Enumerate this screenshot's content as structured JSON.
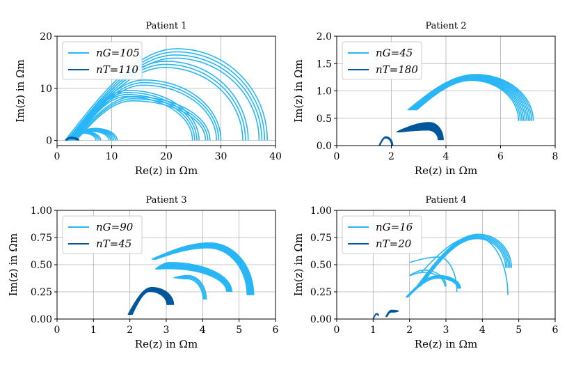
{
  "chart_data": [
    {
      "type": "line",
      "title": "Patient 1",
      "xlabel": "Re(z) in Ωm",
      "ylabel": "Im(z) in Ωm",
      "xlim": [
        0,
        40
      ],
      "ylim": [
        -1,
        20
      ],
      "xticks": [
        0,
        10,
        20,
        30,
        40
      ],
      "yticks": [
        0,
        10,
        20
      ],
      "ytick_labels": [
        "0",
        "10",
        "20"
      ],
      "grid": true,
      "legend_position": "top-left",
      "legend": [
        {
          "label": "nG=105",
          "color": "#29b6f6"
        },
        {
          "label": "nT=110",
          "color": "#01579b"
        }
      ],
      "series": [
        {
          "name": "nG=105",
          "color": "#29b6f6",
          "arcs": [
            {
              "x0": 1.5,
              "x1": 38.5,
              "h": 17.6,
              "xp": 22,
              "n": 4,
              "dx": 0.5,
              "dh": 0.6
            },
            {
              "x0": 2,
              "x1": 35,
              "h": 15.2,
              "xp": 20,
              "n": 3,
              "dx": 0.5,
              "dh": 0.6
            },
            {
              "x0": 2.5,
              "x1": 30,
              "h": 11.6,
              "xp": 16,
              "n": 3,
              "dx": 0.4,
              "dh": 0.5
            },
            {
              "x0": 2.5,
              "x1": 26,
              "h": 9.6,
              "xp": 13,
              "n": 4,
              "dx": 0.4,
              "dh": 0.4
            },
            {
              "x0": 3,
              "x1": 28,
              "h": 8.4,
              "xp": 14,
              "n": 3,
              "dx": 0.4,
              "dh": 0.4
            },
            {
              "x0": 1.5,
              "x1": 11,
              "h": 2.3,
              "xp": 7,
              "n": 6,
              "dx": 0.3,
              "dh": 0.12
            },
            {
              "x0": 2,
              "x1": 8,
              "h": 1.7,
              "xp": 5,
              "n": 4,
              "dx": 0.3,
              "dh": 0.1
            }
          ]
        },
        {
          "name": "nT=110",
          "color": "#01579b",
          "arcs": [
            {
              "x0": 1.5,
              "x1": 4,
              "h": 0.6,
              "xp": 2.5,
              "n": 5,
              "dx": 0.1,
              "dh": 0.05
            }
          ]
        }
      ]
    },
    {
      "type": "line",
      "title": "Patient 2",
      "xlabel": "Re(z) in Ωm",
      "ylabel": "Im(z) in Ωm",
      "xlim": [
        0,
        8
      ],
      "ylim": [
        0,
        2
      ],
      "xticks": [
        0,
        2,
        4,
        6,
        8
      ],
      "yticks": [
        0,
        0.5,
        1,
        1.5,
        2
      ],
      "ytick_labels": [
        "0.0",
        "0.5",
        "1.0",
        "1.5",
        "2.0"
      ],
      "grid": true,
      "legend_position": "top-left",
      "legend": [
        {
          "label": "nG=45",
          "color": "#29b6f6"
        },
        {
          "label": "nT=180",
          "color": "#01579b"
        }
      ],
      "series": [
        {
          "name": "nG=45",
          "color": "#29b6f6",
          "arcs": [
            {
              "x0": 2.6,
              "x1": 7.2,
              "h": 1.3,
              "xp": 5.1,
              "y0": 0.65,
              "y1": 0.45,
              "n": 10,
              "dx": 0.06,
              "dh": 0.012
            }
          ]
        },
        {
          "name": "nT=180",
          "color": "#01579b",
          "arcs": [
            {
              "x0": 1.55,
              "x1": 2.05,
              "h": 0.16,
              "xp": 1.8,
              "n": 3,
              "dx": 0.02,
              "dh": 0.01
            },
            {
              "x0": 2.2,
              "x1": 3.9,
              "h": 0.42,
              "xp": 3.4,
              "y0": 0.25,
              "y1": 0.1,
              "n": 10,
              "dx": 0.02,
              "dh": 0.015
            }
          ]
        }
      ]
    },
    {
      "type": "line",
      "title": "Patient 3",
      "xlabel": "Re(z) in Ωm",
      "ylabel": "Im(z) in Ωm",
      "xlim": [
        0,
        6
      ],
      "ylim": [
        0,
        1
      ],
      "xticks": [
        0,
        1,
        2,
        3,
        4,
        5,
        6
      ],
      "yticks": [
        0,
        0.25,
        0.5,
        0.75,
        1
      ],
      "ytick_labels": [
        "0.00",
        "0.25",
        "0.50",
        "0.75",
        "1.00"
      ],
      "grid": true,
      "legend_position": "top-left",
      "legend": [
        {
          "label": "nG=90",
          "color": "#29b6f6"
        },
        {
          "label": "nT=45",
          "color": "#01579b"
        }
      ],
      "series": [
        {
          "name": "nG=90",
          "color": "#29b6f6",
          "arcs": [
            {
              "x0": 2.6,
              "x1": 5.4,
              "h": 0.7,
              "xp": 4.2,
              "y0": 0.55,
              "y1": 0.22,
              "n": 10,
              "dx": 0.02,
              "dh": 0.005
            },
            {
              "x0": 2.7,
              "x1": 4.8,
              "h": 0.52,
              "xp": 3.1,
              "y0": 0.46,
              "y1": 0.25,
              "n": 8,
              "dx": 0.02,
              "dh": 0.008
            },
            {
              "x0": 3.2,
              "x1": 4.1,
              "h": 0.4,
              "xp": 3.6,
              "y0": 0.38,
              "y1": 0.18,
              "n": 4,
              "dx": 0.03,
              "dh": 0.01
            }
          ]
        },
        {
          "name": "nT=45",
          "color": "#01579b",
          "arcs": [
            {
              "x0": 1.95,
              "x1": 3.2,
              "h": 0.29,
              "xp": 2.6,
              "y0": 0.04,
              "y1": 0.13,
              "n": 10,
              "dx": 0.02,
              "dh": 0.004
            }
          ]
        }
      ]
    },
    {
      "type": "line",
      "title": "Patient 4",
      "xlabel": "Re(z) in Ωm",
      "ylabel": "Im(z) in Ωm",
      "xlim": [
        0,
        6
      ],
      "ylim": [
        0,
        1
      ],
      "xticks": [
        0,
        1,
        2,
        3,
        4,
        5,
        6
      ],
      "yticks": [
        0,
        0.25,
        0.5,
        0.75,
        1
      ],
      "ytick_labels": [
        "0.00",
        "0.25",
        "0.50",
        "0.75",
        "1.00"
      ],
      "grid": true,
      "legend_position": "top-left",
      "legend": [
        {
          "label": "nG=16",
          "color": "#29b6f6"
        },
        {
          "label": "nT=20",
          "color": "#01579b"
        }
      ],
      "series": [
        {
          "name": "nG=16",
          "color": "#29b6f6",
          "arcs": [
            {
              "x0": 2.2,
              "x1": 4.8,
              "h": 0.78,
              "xp": 3.9,
              "y0": 0.3,
              "y1": 0.47,
              "n": 5,
              "dx": 0.04,
              "dh": 0.01
            },
            {
              "x0": 2.3,
              "x1": 4.7,
              "h": 0.76,
              "xp": 3.8,
              "y0": 0.42,
              "y1": 0.22,
              "n": 1,
              "dx": 0,
              "dh": 0
            },
            {
              "x0": 2.0,
              "x1": 3.3,
              "h": 0.57,
              "xp": 2.8,
              "y0": 0.52,
              "y1": 0.25,
              "n": 1,
              "dx": 0,
              "dh": 0
            },
            {
              "x0": 1.9,
              "x1": 3.4,
              "h": 0.4,
              "xp": 2.8,
              "y0": 0.2,
              "y1": 0.28,
              "n": 5,
              "dx": 0.02,
              "dh": 0.006
            },
            {
              "x0": 2.0,
              "x1": 3.0,
              "h": 0.45,
              "xp": 2.4,
              "y0": 0.4,
              "y1": 0.3,
              "n": 2,
              "dx": 0.03,
              "dh": 0.02
            }
          ]
        },
        {
          "name": "nT=20",
          "color": "#01579b",
          "arcs": [
            {
              "x0": 1.0,
              "x1": 1.15,
              "h": 0.05,
              "xp": 1.1,
              "y0": 0.0,
              "y1": 0.03,
              "n": 2,
              "dx": 0.01,
              "dh": 0.005
            },
            {
              "x0": 1.35,
              "x1": 1.7,
              "h": 0.08,
              "xp": 1.5,
              "y0": 0.02,
              "y1": 0.07,
              "n": 5,
              "dx": 0.01,
              "dh": 0.004
            }
          ]
        }
      ]
    }
  ]
}
